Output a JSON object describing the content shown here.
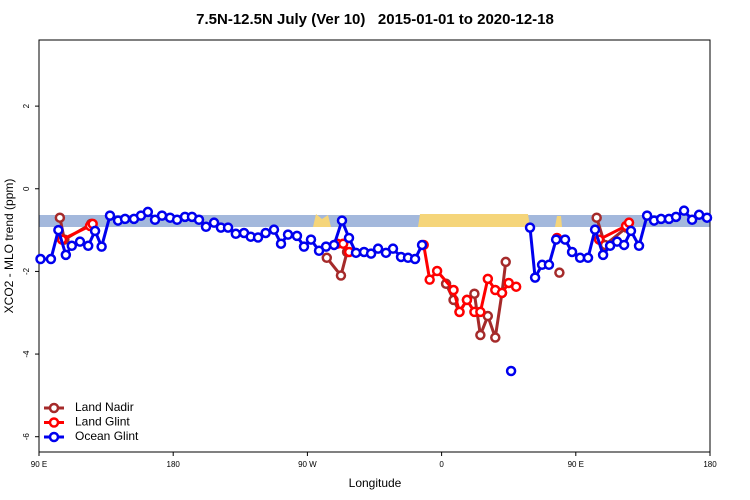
{
  "chart_data": {
    "type": "line",
    "title": "7.5N-12.5N July (Ver 10)   2015-01-01 to 2020-12-18",
    "x_label": "Longitude",
    "y_label": "XCO2 - MLO trend (ppm)",
    "xlim": [
      90,
      540
    ],
    "ylim": [
      -6.37,
      3.6
    ],
    "xticks": [
      {
        "value": 90,
        "label": "90 E"
      },
      {
        "value": 180,
        "label": "180"
      },
      {
        "value": 270,
        "label": "90 W"
      },
      {
        "value": 360,
        "label": "0"
      },
      {
        "value": 450,
        "label": "90 E"
      },
      {
        "value": 540,
        "label": "180"
      }
    ],
    "yticks": [
      2,
      0,
      -2,
      -4,
      -6
    ],
    "legend": "bottom-left",
    "series": [
      {
        "name": "Land Nadir",
        "color": "#a52a2a",
        "x": [
          104,
          107,
          125,
          null,
          283,
          292.5,
          296.6,
          null,
          363,
          368,
          372,
          377,
          382,
          386,
          391,
          396,
          400.5,
          403,
          null,
          439,
          null,
          464,
          469.6,
          484
        ],
        "values": [
          -0.7,
          -1.23,
          -0.85,
          null,
          -1.67,
          -2.1,
          -1.53,
          null,
          -2.3,
          -2.69,
          -2.98,
          -2.69,
          -2.54,
          -3.54,
          -3.08,
          -3.6,
          -2.52,
          -1.77,
          null,
          -2.03,
          null,
          -0.7,
          -1.36,
          -0.94
        ]
      },
      {
        "name": "Land Glint",
        "color": "#ff0000",
        "x": [
          105.4,
          124.2,
          126,
          null,
          290,
          294,
          298,
          null,
          348,
          352,
          357,
          368,
          372,
          377,
          382,
          386,
          391,
          396,
          400.5,
          405,
          410,
          null,
          437.4,
          null,
          465.6,
          483.7,
          485.7
        ],
        "values": [
          -1.23,
          -0.9,
          -0.85,
          null,
          -1.33,
          -1.33,
          -1.53,
          null,
          -1.36,
          -2.2,
          -1.99,
          -2.45,
          -2.98,
          -2.69,
          -2.98,
          -2.98,
          -2.18,
          -2.45,
          -2.52,
          -2.28,
          -2.37,
          null,
          -1.19,
          null,
          -1.23,
          -0.9,
          -0.82
        ]
      },
      {
        "name": "Ocean Glint",
        "color": "#0000ee",
        "x": [
          91,
          98,
          103,
          108,
          112,
          117.5,
          123,
          127.6,
          132,
          137.6,
          143,
          147.7,
          153.7,
          158.4,
          163,
          167.8,
          172.5,
          177.9,
          182.6,
          187.9,
          192.6,
          197.3,
          202,
          207.4,
          212,
          216.8,
          222,
          227.5,
          232,
          236.9,
          242,
          247.6,
          252.3,
          257,
          263,
          267.7,
          272.4,
          277.8,
          282.5,
          287.9,
          293.2,
          297.9,
          302.6,
          308,
          312.7,
          317.4,
          322.7,
          327.4,
          332.8,
          337.5,
          342.2,
          346.9,
          null,
          406.6,
          null,
          419.3,
          422.7,
          427.4,
          432,
          436.8,
          442.8,
          447.5,
          452.9,
          458.2,
          462.9,
          468.3,
          473,
          477.7,
          482.4,
          487,
          492.4,
          497.8,
          502.5,
          507.2,
          512.5,
          517.2,
          522.6,
          528,
          532.7,
          538
        ],
        "values": [
          -1.7,
          -1.7,
          -1.0,
          -1.6,
          -1.38,
          -1.28,
          -1.38,
          -1.02,
          -1.4,
          -0.65,
          -0.77,
          -0.73,
          -0.73,
          -0.65,
          -0.56,
          -0.75,
          -0.65,
          -0.7,
          -0.75,
          -0.68,
          -0.68,
          -0.75,
          -0.92,
          -0.82,
          -0.94,
          -0.94,
          -1.09,
          -1.07,
          -1.16,
          -1.18,
          -1.07,
          -0.99,
          -1.33,
          -1.11,
          -1.14,
          -1.4,
          -1.23,
          -1.5,
          -1.4,
          -1.36,
          -0.77,
          -1.19,
          -1.55,
          -1.53,
          -1.57,
          -1.45,
          -1.55,
          -1.45,
          -1.65,
          -1.67,
          -1.7,
          -1.36,
          null,
          -4.41,
          null,
          -0.94,
          -2.15,
          -1.84,
          -1.84,
          -1.23,
          -1.23,
          -1.53,
          -1.67,
          -1.67,
          -0.99,
          -1.6,
          -1.38,
          -1.28,
          -1.36,
          -1.02,
          -1.38,
          -0.65,
          -0.77,
          -0.73,
          -0.73,
          -0.68,
          -0.53,
          -0.75,
          -0.63,
          -0.7
        ]
      }
    ]
  }
}
